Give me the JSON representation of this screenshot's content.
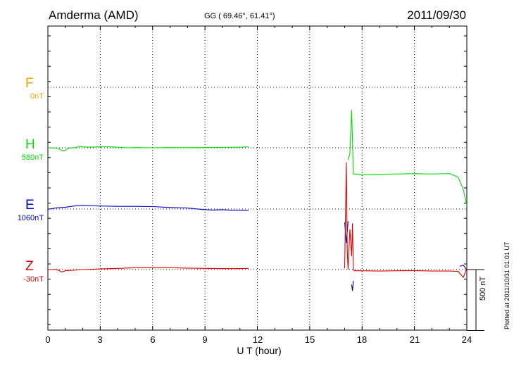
{
  "header": {
    "station": "Amderma (AMD)",
    "coords": "GG ( 69.46°,  61.41°)",
    "date": "2011/09/30"
  },
  "footer": {
    "plotted": "Plotted at 2011/10/31 01:01  UT"
  },
  "colors": {
    "F": "#f5a300",
    "H": "#00dd00",
    "E": "#0000cc",
    "Z": "#dd0000"
  },
  "chart_data": {
    "type": "line",
    "xlabel": "U T (hour)",
    "xlim": [
      0,
      24
    ],
    "xticks": [
      0,
      3,
      6,
      9,
      12,
      15,
      18,
      21,
      24
    ],
    "grid": true,
    "scale_bar_label": "500 nT",
    "channels": [
      {
        "name": "F",
        "baseline_label": "0nT"
      },
      {
        "name": "H",
        "baseline_label": "580nT"
      },
      {
        "name": "E",
        "baseline_label": "1060nT"
      },
      {
        "name": "Z",
        "baseline_label": "-30nT"
      }
    ],
    "series": [
      {
        "name": "H",
        "unit": "nT",
        "x": [
          0,
          0.5,
          0.9,
          1.2,
          1.6,
          1.8,
          2.0,
          2.5,
          3.0,
          3.5,
          4.0,
          4.5,
          5.0,
          6.0,
          7.0,
          8.0,
          9.0,
          10.0,
          11.0,
          11.5
        ],
        "y": [
          580,
          578,
          553,
          578,
          582,
          592,
          588,
          585,
          590,
          588,
          585,
          580,
          582,
          580,
          582,
          581,
          582,
          583,
          585,
          588
        ],
        "x2": [
          17.2,
          17.3,
          17.4,
          17.5,
          18.0,
          19.0,
          20.0,
          21.0,
          22.0,
          23.0,
          23.5,
          23.8,
          24.0
        ],
        "y2": [
          480,
          530,
          890,
          365,
          360,
          362,
          365,
          367,
          365,
          368,
          340,
          240,
          105
        ]
      },
      {
        "name": "E",
        "unit": "nT",
        "x": [
          0,
          0.5,
          1.0,
          1.5,
          2.0,
          3.0,
          4.0,
          5.0,
          6.0,
          7.0,
          8.0,
          9.0,
          9.5,
          10.0,
          10.5,
          11.0,
          11.5
        ],
        "y": [
          1058,
          1070,
          1075,
          1085,
          1090,
          1085,
          1082,
          1082,
          1080,
          1073,
          1068,
          1055,
          1052,
          1055,
          1050,
          1050,
          1048
        ],
        "x2": [
          17.0,
          17.1,
          17.2
        ],
        "y2": [
          950,
          780,
          960
        ],
        "x3": [
          17.4,
          17.45,
          17.5
        ],
        "y3": [
          440,
          390,
          470
        ],
        "x4": [
          23.6,
          23.8,
          24.0
        ],
        "y4": [
          590,
          600,
          560
        ]
      },
      {
        "name": "Z",
        "unit": "nT",
        "x": [
          0,
          0.5,
          0.8,
          1.0,
          2.0,
          3.0,
          4.0,
          5.0,
          6.0,
          7.0,
          8.0,
          9.0,
          10.0,
          11.0,
          11.5
        ],
        "y": [
          -30,
          -28,
          -50,
          -40,
          -30,
          -25,
          -20,
          -15,
          -15,
          -15,
          -18,
          -20,
          -22,
          -22,
          -20
        ],
        "x2": [
          17.0,
          17.1,
          17.15,
          17.2,
          17.3,
          17.4,
          17.45,
          17.5,
          17.55,
          18.0,
          19.0,
          20.0,
          21.0,
          22.0,
          23.0,
          23.5,
          23.8,
          24.0
        ],
        "y2": [
          -20,
          850,
          120,
          -30,
          300,
          80,
          350,
          -20,
          -40,
          -40,
          -42,
          -40,
          -38,
          -42,
          -42,
          -45,
          -95,
          -20
        ]
      }
    ]
  }
}
